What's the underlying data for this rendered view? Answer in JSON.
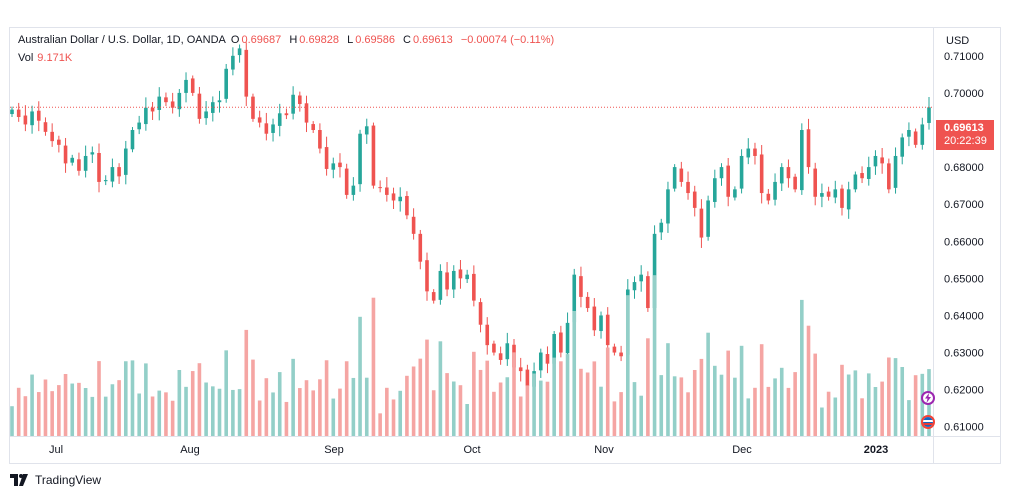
{
  "legend": {
    "symbol": "Australian Dollar / U.S. Dollar, 1D, OANDA",
    "open_label": "O",
    "open": "0.69687",
    "high_label": "H",
    "high": "0.69828",
    "low_label": "L",
    "low": "0.69586",
    "close_label": "C",
    "close": "0.69613",
    "change": "−0.00074 (−0.11%)",
    "vol_label": "Vol",
    "vol": "9.171K"
  },
  "currency": "USD",
  "price_tag": {
    "price": "0.69613",
    "countdown": "20:22:39"
  },
  "brand": "TradingView",
  "colors": {
    "up": "#26a69a",
    "down": "#ef5350",
    "vol_up": "#93cfc8",
    "vol_down": "#f5a5a3"
  },
  "icons": [
    "lightning-icon",
    "flag-icon",
    "tradingview-logo-icon"
  ],
  "chart_data": {
    "type": "candlestick",
    "x_labels": [
      "Jul",
      "Aug",
      "Sep",
      "Oct",
      "Nov",
      "Dec",
      "2023"
    ],
    "y_ticks": [
      "0.71000",
      "0.70000",
      "0.69000",
      "0.68000",
      "0.67000",
      "0.66000",
      "0.65000",
      "0.64000",
      "0.63000",
      "0.62000",
      "0.61000"
    ],
    "ylim": [
      0.6075,
      0.7175
    ],
    "last_price": 0.69613,
    "close": [
      0.6955,
      0.6935,
      0.6915,
      0.695,
      0.6925,
      0.6895,
      0.687,
      0.686,
      0.681,
      0.6825,
      0.679,
      0.683,
      0.684,
      0.676,
      0.6765,
      0.68,
      0.6775,
      0.685,
      0.69,
      0.692,
      0.696,
      0.695,
      0.699,
      0.6975,
      0.696,
      0.7,
      0.7035,
      0.7,
      0.693,
      0.695,
      0.6975,
      0.698,
      0.7065,
      0.71,
      0.712,
      0.699,
      0.693,
      0.692,
      0.689,
      0.6915,
      0.6945,
      0.694,
      0.6995,
      0.697,
      0.692,
      0.69,
      0.685,
      0.6795,
      0.681,
      0.68,
      0.6725,
      0.675,
      0.689,
      0.691,
      0.675,
      0.6745,
      0.6725,
      0.671,
      0.672,
      0.667,
      0.662,
      0.6545,
      0.6465,
      0.644,
      0.652,
      0.647,
      0.652,
      0.65,
      0.651,
      0.644,
      0.6375,
      0.632,
      0.63,
      0.628,
      0.6325,
      0.626,
      0.625,
      0.621,
      0.625,
      0.63,
      0.627,
      0.635,
      0.63,
      0.638,
      0.651,
      0.645,
      0.642,
      0.636,
      0.64,
      0.632,
      0.63,
      0.629,
      0.647,
      0.649,
      0.651,
      0.642,
      0.662,
      0.665,
      0.674,
      0.68,
      0.676,
      0.673,
      0.669,
      0.661,
      0.671,
      0.677,
      0.68,
      0.672,
      0.674,
      0.683,
      0.685,
      0.683,
      0.673,
      0.671,
      0.676,
      0.68,
      0.677,
      0.674,
      0.69,
      0.68,
      0.672,
      0.673,
      0.672,
      0.674,
      0.669,
      0.674,
      0.678,
      0.677,
      0.68,
      0.683,
      0.681,
      0.674,
      0.683,
      0.688,
      0.69,
      0.686,
      0.6915,
      0.6961
    ]
  }
}
